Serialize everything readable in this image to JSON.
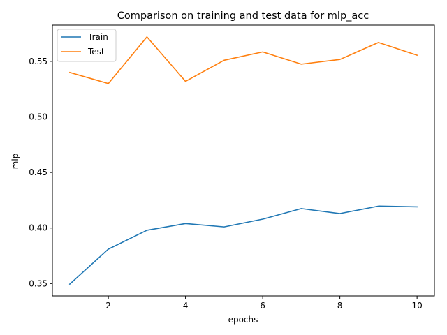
{
  "chart_data": {
    "type": "line",
    "title": "Comparison on training and test data for mlp_acc",
    "xlabel": "epochs",
    "ylabel": "mlp",
    "xlim": [
      0.55,
      10.45
    ],
    "ylim": [
      0.3389,
      0.5826
    ],
    "x_ticks": [
      2,
      4,
      6,
      8,
      10
    ],
    "y_ticks": [
      0.35,
      0.4,
      0.45,
      0.5,
      0.55
    ],
    "y_tick_labels": [
      "0.35",
      "0.40",
      "0.45",
      "0.50",
      "0.55"
    ],
    "x": [
      1,
      2,
      3,
      4,
      5,
      6,
      7,
      8,
      9,
      10
    ],
    "grid": false,
    "legend_position": "upper-left",
    "series": [
      {
        "name": "Train",
        "color": "#1f77b4",
        "values": [
          0.3495,
          0.381,
          0.398,
          0.404,
          0.401,
          0.408,
          0.4175,
          0.413,
          0.4197,
          0.419
        ]
      },
      {
        "name": "Test",
        "color": "#ff7f0e",
        "values": [
          0.54,
          0.53,
          0.572,
          0.532,
          0.551,
          0.5585,
          0.5475,
          0.5517,
          0.567,
          0.5555
        ]
      }
    ]
  }
}
